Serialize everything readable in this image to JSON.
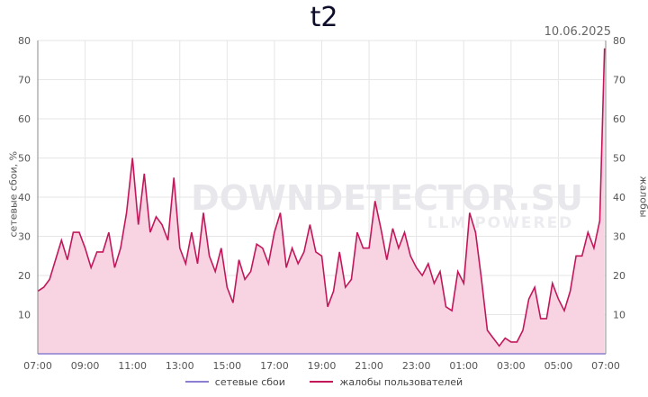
{
  "title": "t2",
  "date": "10.06.2025",
  "watermark": {
    "brand": "DOWNDETECTOR.SU",
    "sub": "LLM POWERED"
  },
  "colors": {
    "line": "#c2185b",
    "fill": "#f8d3e2",
    "network_line": "#8a7fd0",
    "grid": "#e6e6e6"
  },
  "chart_data": {
    "type": "area",
    "title": "t2",
    "date": "10.06.2025",
    "ylabel_left": "сетевые сбои, %",
    "ylabel_right": "жалобы",
    "ylim": [
      0,
      80
    ],
    "yticks": [
      10,
      20,
      30,
      40,
      50,
      60,
      70,
      80
    ],
    "xticks": [
      "07:00",
      "09:00",
      "11:00",
      "13:00",
      "15:00",
      "17:00",
      "19:00",
      "21:00",
      "23:00",
      "01:00",
      "03:00",
      "05:00",
      "07:00"
    ],
    "x_range_hours": [
      0,
      24
    ],
    "grid": true,
    "legend_position": "bottom",
    "series": [
      {
        "name": "сетевые сбои",
        "values": [
          0,
          0
        ]
      },
      {
        "name": "жалобы пользователей",
        "x_hours": [
          0,
          0.25,
          0.5,
          0.75,
          1,
          1.25,
          1.5,
          1.75,
          2,
          2.25,
          2.5,
          2.75,
          3,
          3.25,
          3.5,
          3.75,
          4,
          4.25,
          4.5,
          4.75,
          5,
          5.25,
          5.5,
          5.75,
          6,
          6.25,
          6.5,
          6.75,
          7,
          7.25,
          7.5,
          7.75,
          8,
          8.25,
          8.5,
          8.75,
          9,
          9.25,
          9.5,
          9.75,
          10,
          10.25,
          10.5,
          10.75,
          11,
          11.25,
          11.5,
          11.75,
          12,
          12.25,
          12.5,
          12.75,
          13,
          13.25,
          13.5,
          13.75,
          14,
          14.25,
          14.5,
          14.75,
          15,
          15.25,
          15.5,
          15.75,
          16,
          16.25,
          16.5,
          16.75,
          17,
          17.25,
          17.5,
          17.75,
          18,
          18.25,
          18.5,
          18.75,
          19,
          19.25,
          19.5,
          19.75,
          20,
          20.25,
          20.5,
          20.75,
          21,
          21.25,
          21.5,
          21.75,
          22,
          22.25,
          22.5,
          22.75,
          23,
          23.25,
          23.5,
          23.75,
          23.95
        ],
        "values": [
          16,
          17,
          19,
          24,
          29,
          24,
          31,
          31,
          27,
          22,
          26,
          26,
          31,
          22,
          27,
          36,
          50,
          33,
          46,
          31,
          35,
          33,
          29,
          45,
          27,
          23,
          31,
          23,
          36,
          25,
          21,
          27,
          17,
          13,
          24,
          19,
          21,
          28,
          27,
          23,
          31,
          36,
          22,
          27,
          23,
          26,
          33,
          26,
          25,
          12,
          16,
          26,
          17,
          19,
          31,
          27,
          27,
          39,
          32,
          24,
          32,
          27,
          31,
          25,
          22,
          20,
          23,
          18,
          21,
          12,
          11,
          21,
          18,
          36,
          31,
          19,
          6,
          4,
          2,
          4,
          3,
          3,
          6,
          14,
          17,
          9,
          9,
          18,
          14,
          11,
          16,
          25,
          25,
          31,
          27,
          34,
          78
        ]
      }
    ]
  }
}
